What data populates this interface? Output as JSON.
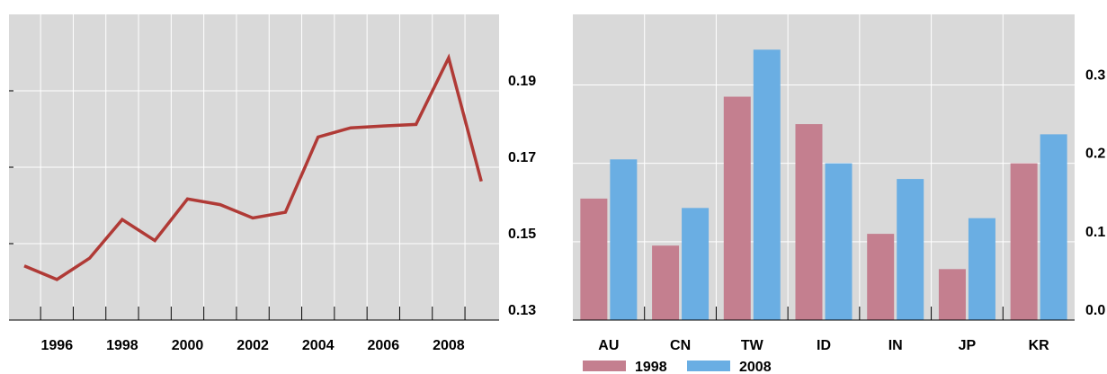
{
  "chart_data": [
    {
      "type": "line",
      "x": [
        1995,
        1996,
        1997,
        1998,
        1999,
        2000,
        2001,
        2002,
        2003,
        2004,
        2005,
        2006,
        2007,
        2008,
        2009
      ],
      "series": [
        {
          "values": [
            0.1442,
            0.1406,
            0.1462,
            0.1563,
            0.1508,
            0.1617,
            0.1602,
            0.1567,
            0.1582,
            0.1779,
            0.1803,
            0.1808,
            0.1812,
            0.1986,
            0.1663
          ]
        }
      ],
      "x_tick_labels": [
        "1996",
        "1998",
        "2000",
        "2002",
        "2004",
        "2006",
        "2008"
      ],
      "y_tick_labels": [
        "0.13",
        "0.15",
        "0.17",
        "0.19"
      ],
      "ylim": [
        0.13,
        0.21
      ],
      "y_axis_side": "right",
      "grid": true,
      "colors": {
        "line": "#b03a36",
        "plot_bg": "#d9d9d9",
        "grid": "#ffffff"
      }
    },
    {
      "type": "bar",
      "categories": [
        "AU",
        "CN",
        "TW",
        "ID",
        "IN",
        "JP",
        "KR"
      ],
      "series": [
        {
          "name": "1998",
          "values": [
            0.155,
            0.095,
            0.285,
            0.25,
            0.11,
            0.065,
            0.2
          ],
          "color": "#c47f8f"
        },
        {
          "name": "2008",
          "values": [
            0.205,
            0.143,
            0.345,
            0.2,
            0.18,
            0.13,
            0.237
          ],
          "color": "#6aaee3"
        }
      ],
      "y_tick_labels": [
        "0.0",
        "0.1",
        "0.2",
        "0.3"
      ],
      "ylim": [
        0.0,
        0.39
      ],
      "y_axis_side": "right",
      "legend_position": "bottom-left",
      "grid": true,
      "colors": {
        "plot_bg": "#d9d9d9",
        "grid": "#ffffff"
      }
    }
  ]
}
